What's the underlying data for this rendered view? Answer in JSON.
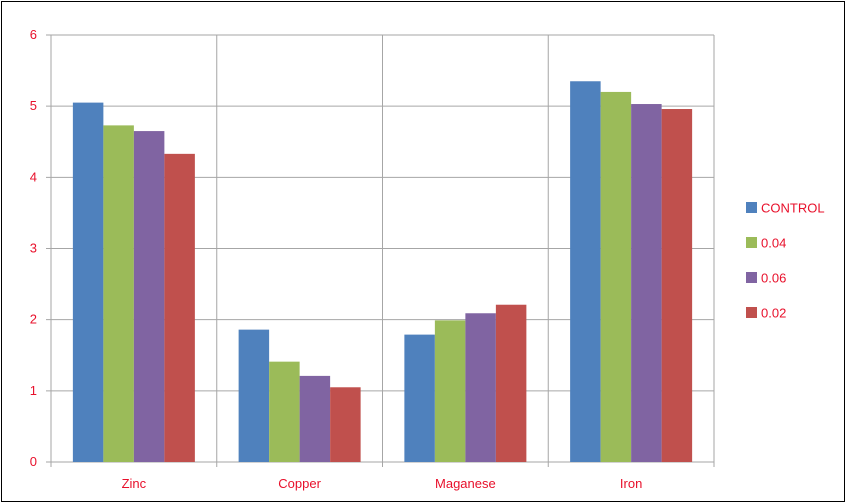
{
  "chart_data": {
    "type": "bar",
    "title": "",
    "xlabel": "",
    "ylabel": "",
    "categories": [
      "Zinc",
      "Copper",
      "Maganese",
      "Iron"
    ],
    "series": [
      {
        "name": "CONTROL",
        "color": "#4f81bd",
        "values": [
          5.05,
          1.86,
          1.79,
          5.35
        ]
      },
      {
        "name": "0.04",
        "color": "#9bbb59",
        "values": [
          4.73,
          1.41,
          1.99,
          5.2
        ]
      },
      {
        "name": "0.06",
        "color": "#8064a2",
        "values": [
          4.65,
          1.21,
          2.09,
          5.03
        ]
      },
      {
        "name": "0.02",
        "color": "#c0504d",
        "values": [
          4.33,
          1.05,
          2.21,
          4.96
        ]
      }
    ],
    "ylim": [
      0,
      6
    ],
    "yticks": [
      "0",
      "1",
      "2",
      "3",
      "4",
      "5",
      "6"
    ],
    "grid": true,
    "legend_position": "right",
    "label_color": "#e8102b"
  }
}
